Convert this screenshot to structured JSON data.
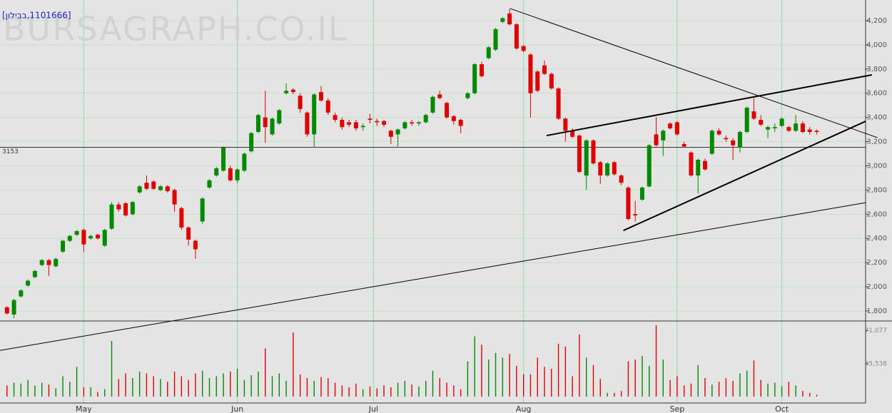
{
  "chart_data": {
    "type": "candlestick",
    "title": "[1101666,בבילון]",
    "watermark": "BURSAGRAPH.CO.IL",
    "up_color": "#008a00",
    "down_color": "#e00000",
    "grid_color": "#8fdcaa",
    "xlim": [
      -1,
      123
    ],
    "xticks": [
      {
        "value": 11,
        "label": "May"
      },
      {
        "value": 33,
        "label": "Jun"
      },
      {
        "value": 52.5,
        "label": "Jul"
      },
      {
        "value": 74,
        "label": "Aug"
      },
      {
        "value": 96,
        "label": "Sep"
      },
      {
        "value": 111,
        "label": "Oct"
      }
    ],
    "ylim": [
      1717,
      4371
    ],
    "yticks": [
      {
        "value": 1800,
        "label": "1,800"
      },
      {
        "value": 2000,
        "label": "2,000"
      },
      {
        "value": 2200,
        "label": "2,200"
      },
      {
        "value": 2400,
        "label": "2,400"
      },
      {
        "value": 2600,
        "label": "2,600"
      },
      {
        "value": 2800,
        "label": "2,800"
      },
      {
        "value": 3000,
        "label": "3,000"
      },
      {
        "value": 3200,
        "label": "3,200"
      },
      {
        "value": 3400,
        "label": "3,400"
      },
      {
        "value": 3600,
        "label": "3,600"
      },
      {
        "value": 3800,
        "label": "3,800"
      },
      {
        "value": 4000,
        "label": "4,000"
      },
      {
        "value": 4200,
        "label": "4,200"
      }
    ],
    "grid": true,
    "reference_line": 3153,
    "volume_ylim": [
      0,
      80000
    ],
    "volume_yticks": [
      {
        "value": 35538,
        "label": "35,538"
      },
      {
        "value": 71077,
        "label": "71,077"
      }
    ],
    "trendlines": [
      {
        "x": [
          -1,
          123
        ],
        "y": [
          1474,
          2695
        ],
        "width": 1
      },
      {
        "x": [
          72.1,
          124.7
        ],
        "y": [
          4300,
          3233
        ],
        "width": 1
      },
      {
        "x": [
          77.3,
          123.9
        ],
        "y": [
          3250,
          3752
        ],
        "width": 2
      },
      {
        "x": [
          88.3,
          123
        ],
        "y": [
          2465,
          3368
        ],
        "width": 2
      }
    ],
    "ohlc": [
      [
        1830,
        1840,
        1770,
        1780
      ],
      [
        1770,
        1900,
        1740,
        1890
      ],
      [
        1920,
        1980,
        1910,
        1970
      ],
      [
        2010,
        2060,
        2000,
        2050
      ],
      [
        2080,
        2140,
        2070,
        2130
      ],
      [
        2180,
        2230,
        2170,
        2220
      ],
      [
        2220,
        2230,
        2090,
        2180
      ],
      [
        2170,
        2240,
        2160,
        2230
      ],
      [
        2290,
        2390,
        2280,
        2380
      ],
      [
        2380,
        2430,
        2370,
        2420
      ],
      [
        2430,
        2470,
        2420,
        2460
      ],
      [
        2470,
        2480,
        2290,
        2350
      ],
      [
        2400,
        2430,
        2390,
        2420
      ],
      [
        2430,
        2440,
        2390,
        2400
      ],
      [
        2340,
        2480,
        2330,
        2470
      ],
      [
        2480,
        2700,
        2470,
        2680
      ],
      [
        2680,
        2700,
        2620,
        2640
      ],
      [
        2690,
        2700,
        2580,
        2590
      ],
      [
        2600,
        2710,
        2590,
        2700
      ],
      [
        2780,
        2840,
        2770,
        2830
      ],
      [
        2860,
        2920,
        2800,
        2810
      ],
      [
        2870,
        2880,
        2800,
        2810
      ],
      [
        2800,
        2840,
        2790,
        2830
      ],
      [
        2830,
        2840,
        2780,
        2790
      ],
      [
        2800,
        2810,
        2620,
        2680
      ],
      [
        2650,
        2660,
        2470,
        2490
      ],
      [
        2490,
        2500,
        2340,
        2390
      ],
      [
        2380,
        2390,
        2230,
        2310
      ],
      [
        2540,
        2740,
        2520,
        2730
      ],
      [
        2820,
        2890,
        2810,
        2880
      ],
      [
        2920,
        2990,
        2910,
        2980
      ],
      [
        2960,
        3160,
        2950,
        3150
      ],
      [
        2980,
        3000,
        2870,
        2880
      ],
      [
        2880,
        2980,
        2860,
        2970
      ],
      [
        2960,
        3110,
        2950,
        3100
      ],
      [
        3120,
        3280,
        3110,
        3270
      ],
      [
        3280,
        3430,
        3270,
        3420
      ],
      [
        3400,
        3620,
        3190,
        3320
      ],
      [
        3260,
        3400,
        3250,
        3390
      ],
      [
        3350,
        3470,
        3340,
        3460
      ],
      [
        3600,
        3680,
        3590,
        3620
      ],
      [
        3630,
        3640,
        3590,
        3610
      ],
      [
        3580,
        3600,
        3440,
        3470
      ],
      [
        3440,
        3450,
        3240,
        3260
      ],
      [
        3260,
        3600,
        3150,
        3590
      ],
      [
        3610,
        3660,
        3530,
        3540
      ],
      [
        3540,
        3560,
        3420,
        3440
      ],
      [
        3420,
        3440,
        3360,
        3380
      ],
      [
        3380,
        3400,
        3300,
        3320
      ],
      [
        3360,
        3380,
        3320,
        3340
      ],
      [
        3360,
        3380,
        3290,
        3310
      ],
      [
        3320,
        3350,
        3290,
        3330
      ],
      [
        3390,
        3430,
        3350,
        3380
      ],
      [
        3370,
        3390,
        3330,
        3360
      ],
      [
        3370,
        3380,
        3320,
        3340
      ],
      [
        3290,
        3300,
        3180,
        3240
      ],
      [
        3260,
        3310,
        3160,
        3300
      ],
      [
        3310,
        3370,
        3300,
        3360
      ],
      [
        3360,
        3380,
        3330,
        3350
      ],
      [
        3350,
        3370,
        3330,
        3360
      ],
      [
        3360,
        3430,
        3350,
        3420
      ],
      [
        3440,
        3580,
        3430,
        3570
      ],
      [
        3590,
        3620,
        3550,
        3560
      ],
      [
        3520,
        3530,
        3390,
        3400
      ],
      [
        3410,
        3420,
        3340,
        3370
      ],
      [
        3380,
        3390,
        3270,
        3330
      ],
      [
        3560,
        3610,
        3550,
        3600
      ],
      [
        3600,
        3850,
        3590,
        3840
      ],
      [
        3840,
        3860,
        3730,
        3740
      ],
      [
        3890,
        3990,
        3880,
        3980
      ],
      [
        3960,
        4140,
        3950,
        4130
      ],
      [
        4190,
        4230,
        4180,
        4220
      ],
      [
        4260,
        4300,
        4160,
        4170
      ],
      [
        4170,
        4180,
        3960,
        3970
      ],
      [
        3990,
        4000,
        3940,
        3950
      ],
      [
        3920,
        3930,
        3400,
        3600
      ],
      [
        3780,
        3790,
        3610,
        3620
      ],
      [
        3830,
        3870,
        3750,
        3760
      ],
      [
        3760,
        3770,
        3630,
        3640
      ],
      [
        3640,
        3650,
        3380,
        3390
      ],
      [
        3390,
        3400,
        3200,
        3290
      ],
      [
        3290,
        3310,
        3230,
        3240
      ],
      [
        3250,
        3260,
        2940,
        2950
      ],
      [
        2920,
        3220,
        2800,
        3210
      ],
      [
        3210,
        3220,
        3010,
        3020
      ],
      [
        3030,
        3040,
        2850,
        2920
      ],
      [
        2920,
        3030,
        2910,
        3020
      ],
      [
        3030,
        3040,
        2920,
        2930
      ],
      [
        2920,
        2930,
        2840,
        2860
      ],
      [
        2820,
        2830,
        2550,
        2560
      ],
      [
        2600,
        2710,
        2540,
        2590
      ],
      [
        2720,
        2830,
        2710,
        2820
      ],
      [
        2830,
        3180,
        2820,
        3170
      ],
      [
        3260,
        3400,
        3160,
        3170
      ],
      [
        3210,
        3300,
        3080,
        3290
      ],
      [
        3350,
        3360,
        3300,
        3310
      ],
      [
        3360,
        3370,
        3250,
        3260
      ],
      [
        3180,
        3200,
        3150,
        3160
      ],
      [
        3110,
        3120,
        2910,
        2920
      ],
      [
        2920,
        3060,
        2770,
        3050
      ],
      [
        3040,
        3060,
        2960,
        2970
      ],
      [
        3100,
        3300,
        3090,
        3290
      ],
      [
        3290,
        3310,
        3250,
        3260
      ],
      [
        3230,
        3250,
        3200,
        3220
      ],
      [
        3210,
        3230,
        3050,
        3170
      ],
      [
        3150,
        3290,
        3110,
        3280
      ],
      [
        3280,
        3490,
        3270,
        3480
      ],
      [
        3450,
        3560,
        3380,
        3390
      ],
      [
        3380,
        3420,
        3330,
        3340
      ],
      [
        3300,
        3330,
        3230,
        3320
      ],
      [
        3310,
        3350,
        3280,
        3320
      ],
      [
        3330,
        3400,
        3320,
        3390
      ],
      [
        3320,
        3330,
        3280,
        3290
      ],
      [
        3290,
        3420,
        3280,
        3350
      ],
      [
        3350,
        3370,
        3270,
        3280
      ],
      [
        3300,
        3320,
        3260,
        3280
      ],
      [
        3290,
        3300,
        3260,
        3280
      ]
    ],
    "volume": [
      12000,
      15000,
      14000,
      18000,
      12000,
      15000,
      13000,
      9000,
      22000,
      16000,
      32000,
      10000,
      10000,
      5000,
      8000,
      60000,
      19000,
      25000,
      20000,
      27000,
      25000,
      22000,
      19000,
      16000,
      27000,
      22000,
      18000,
      25000,
      28000,
      20000,
      22000,
      25000,
      27000,
      30000,
      18000,
      23000,
      27000,
      52000,
      22000,
      25000,
      17000,
      69000,
      24000,
      20000,
      17000,
      21000,
      20000,
      15000,
      12000,
      10000,
      14000,
      8000,
      11000,
      9000,
      12000,
      10000,
      15000,
      17000,
      13000,
      11000,
      17000,
      28000,
      20000,
      15000,
      12000,
      8000,
      38000,
      65000,
      56000,
      40000,
      47000,
      42000,
      46000,
      33000,
      24000,
      24000,
      42000,
      32000,
      30000,
      57000,
      54000,
      22000,
      67000,
      42000,
      34000,
      19000,
      4000,
      4000,
      6000,
      38000,
      40000,
      44000,
      33000,
      77000,
      40000,
      18000,
      22000,
      12000,
      14000,
      34000,
      20000,
      13000,
      16000,
      20000,
      17000,
      25000,
      28000,
      39000,
      18000,
      14000,
      15000,
      11000,
      16000,
      12000,
      6000,
      4000,
      2000
    ]
  }
}
